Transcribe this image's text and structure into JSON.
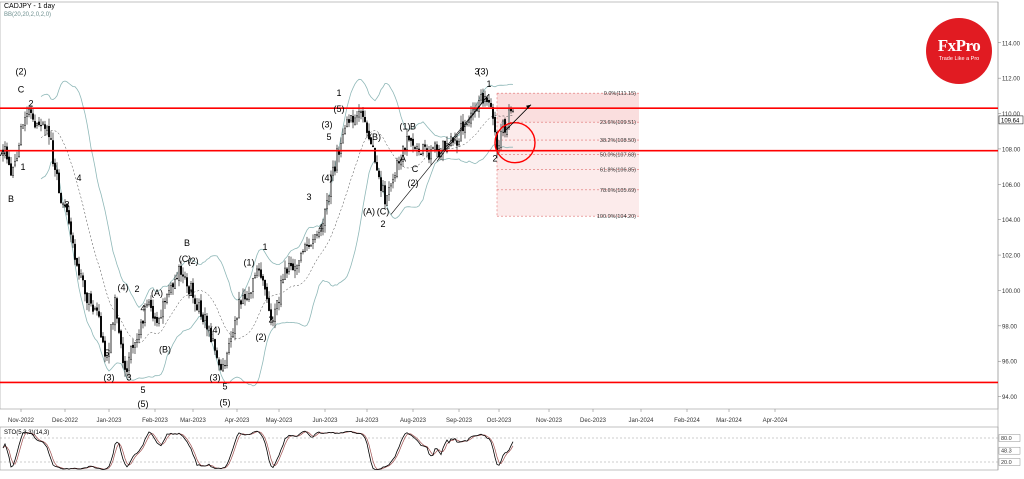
{
  "header": {
    "symbol_label": "CADJPY - 1 day",
    "indicator_label": "BB(20,20,2,0,2,0)"
  },
  "logo": {
    "brand": "FxPro",
    "tagline": "Trade Like a Pro",
    "color": "#e11b22"
  },
  "colors": {
    "up_candle": "#ffffff",
    "down_candle": "#000000",
    "bollinger": "#8fb8b8",
    "resistance": "#ff0000",
    "fib_zone": "#f6c6c6",
    "stochastic_main": "#000000",
    "stochastic_signal": "#a05050"
  },
  "chart_data": [
    {
      "type": "candlestick",
      "symbol": "CADJPY",
      "timeframe": "1 day",
      "price_axis": {
        "ylim": [
          93.3,
          115.4
        ],
        "ticks": [
          "114.00",
          "112.00",
          "110.00",
          "108.00",
          "106.00",
          "104.00",
          "102.00",
          "100.00",
          "98.00",
          "96.00",
          "94.00"
        ],
        "current_price": "109.64"
      },
      "time_axis": {
        "ticks": [
          {
            "label": "Nov-2022",
            "idx": 9
          },
          {
            "label": "Dec-2022",
            "idx": 31
          },
          {
            "label": "Jan-2023",
            "idx": 53
          },
          {
            "label": "Feb-2023",
            "idx": 76
          },
          {
            "label": "Mar-2023",
            "idx": 95
          },
          {
            "label": "Apr-2023",
            "idx": 117
          },
          {
            "label": "May-2023",
            "idx": 138
          },
          {
            "label": "Jun-2023",
            "idx": 161
          },
          {
            "label": "Jul-2023",
            "idx": 182
          },
          {
            "label": "Aug-2023",
            "idx": 205
          },
          {
            "label": "Sep-2023",
            "idx": 228
          },
          {
            "label": "Oct-2023",
            "idx": 248
          },
          {
            "label": "Nov-2023",
            "idx": 273
          },
          {
            "label": "Dec-2023",
            "idx": 295
          },
          {
            "label": "Jan-2024",
            "idx": 319
          },
          {
            "label": "Feb-2024",
            "idx": 342
          },
          {
            "label": "Mar-2024",
            "idx": 363
          },
          {
            "label": "Apr-2024",
            "idx": 386
          }
        ]
      },
      "close_path_anchors": [
        [
          0,
          108.0
        ],
        [
          5,
          106.6
        ],
        [
          10,
          109.4
        ],
        [
          13,
          110.4
        ],
        [
          16,
          109.2
        ],
        [
          19,
          109.6
        ],
        [
          23,
          108.8
        ],
        [
          28,
          105.6
        ],
        [
          33,
          103.7
        ],
        [
          37,
          101.3
        ],
        [
          42,
          99.7
        ],
        [
          48,
          98.3
        ],
        [
          52,
          96.0
        ],
        [
          56,
          99.3
        ],
        [
          59,
          96.6
        ],
        [
          62,
          95.4
        ],
        [
          65,
          97.0
        ],
        [
          69,
          98.2
        ],
        [
          73,
          99.1
        ],
        [
          77,
          98.4
        ],
        [
          82,
          99.4
        ],
        [
          87,
          101.1
        ],
        [
          90,
          100.8
        ],
        [
          94,
          100.0
        ],
        [
          98,
          99.1
        ],
        [
          102,
          98.1
        ],
        [
          106,
          96.9
        ],
        [
          109,
          95.1
        ],
        [
          113,
          96.8
        ],
        [
          118,
          99.1
        ],
        [
          123,
          99.8
        ],
        [
          127,
          101.2
        ],
        [
          131,
          100.4
        ],
        [
          134,
          98.3
        ],
        [
          136,
          98.6
        ],
        [
          140,
          100.8
        ],
        [
          145,
          101.3
        ],
        [
          150,
          102.2
        ],
        [
          155,
          102.5
        ],
        [
          160,
          104.1
        ],
        [
          164,
          106.2
        ],
        [
          167,
          107.6
        ],
        [
          171,
          109.1
        ],
        [
          175,
          109.8
        ],
        [
          179,
          109.8
        ],
        [
          184,
          108.4
        ],
        [
          188,
          106.6
        ],
        [
          191,
          105.0
        ],
        [
          194,
          106.4
        ],
        [
          197,
          107.2
        ],
        [
          201,
          108.2
        ],
        [
          204,
          108.4
        ],
        [
          208,
          108.1
        ],
        [
          212,
          107.6
        ],
        [
          215,
          107.9
        ],
        [
          219,
          107.9
        ],
        [
          223,
          108.2
        ],
        [
          227,
          108.6
        ],
        [
          231,
          109.4
        ],
        [
          235,
          110.3
        ],
        [
          239,
          110.7
        ],
        [
          242,
          111.0
        ],
        [
          245,
          109.9
        ],
        [
          247,
          108.3
        ],
        [
          249,
          108.9
        ],
        [
          252,
          109.6
        ],
        [
          255,
          110.3
        ]
      ],
      "bollinger_bands": {
        "period": 20,
        "deviations": 2
      },
      "horizontal_levels": [
        110.3,
        107.9,
        94.8
      ],
      "fibonacci_retracement": {
        "start_price": 111.15,
        "end_price": 104.2,
        "start_idx": 243,
        "end_idx": 263,
        "levels": [
          {
            "label": "0.0%(111.15)",
            "price": 111.15
          },
          {
            "label": "23.6%(109.51)",
            "price": 109.51
          },
          {
            "label": "38.2%(108.50)",
            "price": 108.5
          },
          {
            "label": "50.0%(107.68)",
            "price": 107.68
          },
          {
            "label": "61.8%(106.85)",
            "price": 106.85
          },
          {
            "label": "78.6%(105.69)",
            "price": 105.69
          },
          {
            "label": "100.0%(104.20)",
            "price": 104.2
          }
        ]
      },
      "highlight_circle": {
        "idx": 248,
        "price": 108.35
      },
      "forecast_arrow": {
        "from_idx": 250,
        "from_price": 108.9,
        "to_idx": 257,
        "to_price": 110.5
      },
      "trend_lines": [
        {
          "from_idx": 194,
          "from_price": 104.3,
          "to_idx": 243,
          "to_price": 111.1
        },
        {
          "from_idx": 217,
          "from_price": 107.3,
          "to_idx": 243,
          "to_price": 111.1
        }
      ],
      "wave_labels": [
        {
          "text": "A",
          "idx": 0,
          "price": 107.6
        },
        {
          "text": "(2)",
          "idx": 9,
          "price": 112.2
        },
        {
          "text": "C",
          "idx": 9,
          "price": 111.2
        },
        {
          "text": "2",
          "idx": 14,
          "price": 110.4
        },
        {
          "text": "1",
          "idx": 10,
          "price": 106.8
        },
        {
          "text": "B",
          "idx": 4,
          "price": 105.0
        },
        {
          "text": "4",
          "idx": 38,
          "price": 106.2
        },
        {
          "text": "3",
          "idx": 32,
          "price": 104.7
        },
        {
          "text": "(4)",
          "idx": 60,
          "price": 100.0
        },
        {
          "text": "2",
          "idx": 67,
          "price": 99.9
        },
        {
          "text": "5",
          "idx": 52,
          "price": 96.3
        },
        {
          "text": "(3)",
          "idx": 53,
          "price": 94.9
        },
        {
          "text": "4",
          "idx": 70,
          "price": 98.8
        },
        {
          "text": "3",
          "idx": 63,
          "price": 94.9
        },
        {
          "text": "5",
          "idx": 70,
          "price": 94.2
        },
        {
          "text": "(5)",
          "idx": 70,
          "price": 93.4
        },
        {
          "text": "(A)",
          "idx": 77,
          "price": 99.7
        },
        {
          "text": "(B)",
          "idx": 81,
          "price": 96.5
        },
        {
          "text": "B",
          "idx": 92,
          "price": 102.5
        },
        {
          "text": "(C)",
          "idx": 91,
          "price": 101.6
        },
        {
          "text": "(2)",
          "idx": 95,
          "price": 101.5
        },
        {
          "text": "1",
          "idx": 94,
          "price": 99.7
        },
        {
          "text": "(4)",
          "idx": 106,
          "price": 97.6
        },
        {
          "text": "(3)",
          "idx": 106,
          "price": 94.9
        },
        {
          "text": "5",
          "idx": 111,
          "price": 94.4
        },
        {
          "text": "(5)",
          "idx": 111,
          "price": 93.5
        },
        {
          "text": "(1)",
          "idx": 123,
          "price": 101.4
        },
        {
          "text": "(2)",
          "idx": 129,
          "price": 97.2
        },
        {
          "text": "1",
          "idx": 131,
          "price": 102.3
        },
        {
          "text": "2",
          "idx": 134,
          "price": 98.2
        },
        {
          "text": "3",
          "idx": 153,
          "price": 105.1
        },
        {
          "text": "4",
          "idx": 159,
          "price": 103.4
        },
        {
          "text": "(4)",
          "idx": 162,
          "price": 106.2
        },
        {
          "text": "(3)",
          "idx": 162,
          "price": 109.2
        },
        {
          "text": "5",
          "idx": 163,
          "price": 108.5
        },
        {
          "text": "1",
          "idx": 168,
          "price": 111.0
        },
        {
          "text": "(5)",
          "idx": 168,
          "price": 110.1
        },
        {
          "text": "(B)",
          "idx": 186,
          "price": 108.5
        },
        {
          "text": "(A)",
          "idx": 183,
          "price": 104.3
        },
        {
          "text": "(C)",
          "idx": 190,
          "price": 104.3
        },
        {
          "text": "2",
          "idx": 190,
          "price": 103.6
        },
        {
          "text": "(1)",
          "idx": 201,
          "price": 109.1
        },
        {
          "text": "B",
          "idx": 205,
          "price": 109.1
        },
        {
          "text": "A",
          "idx": 200,
          "price": 107.3
        },
        {
          "text": "C",
          "idx": 206,
          "price": 106.7
        },
        {
          "text": "(2)",
          "idx": 205,
          "price": 105.9
        },
        {
          "text": "1",
          "idx": 243,
          "price": 111.5
        },
        {
          "text": "3",
          "idx": 237,
          "price": 112.2
        },
        {
          "text": "(3)",
          "idx": 240,
          "price": 112.2
        },
        {
          "text": "2",
          "idx": 246,
          "price": 107.3
        }
      ]
    },
    {
      "type": "line",
      "name": "STO(5,3,3)(14,3)",
      "ylim": [
        0,
        100
      ],
      "ticks": [
        "80.0",
        "48.3",
        "20.0"
      ],
      "levels": [
        80,
        20
      ],
      "smoothing": 3
    }
  ]
}
